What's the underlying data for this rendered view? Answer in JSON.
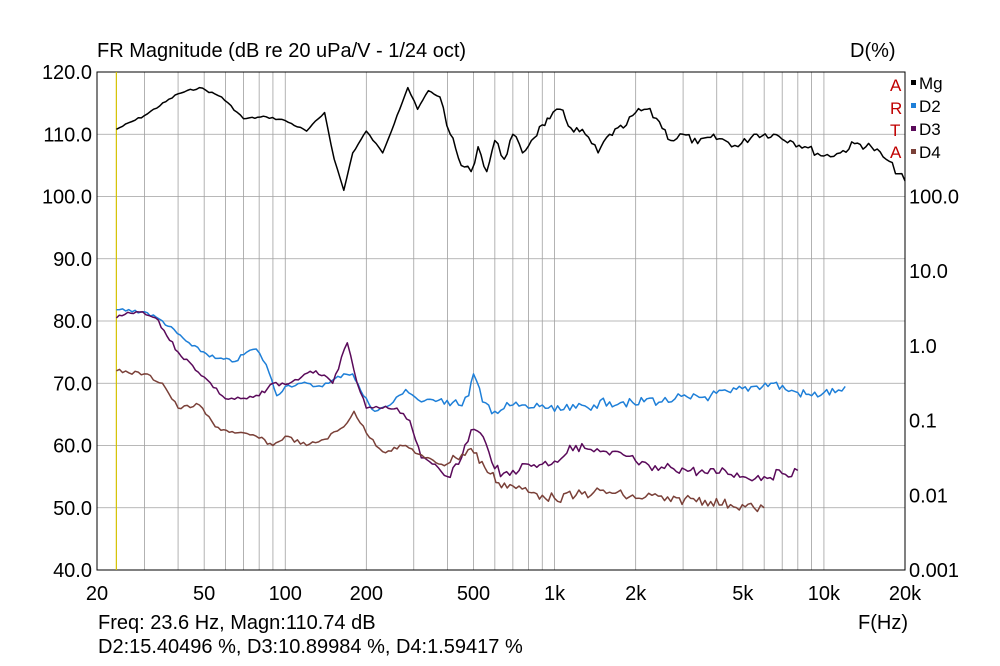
{
  "header": {
    "title": "FR Magnitude (dB re 20 uPa/V - 1/24 oct)",
    "right_axis_unit": "D(%)",
    "x_unit": "F(Hz)"
  },
  "readout": {
    "line1": "Freq: 23.6 Hz, Magn:110.74 dB",
    "line2": "D2:15.40496 %, D3:10.89984 %, D4:1.59417 %"
  },
  "brand": [
    "A",
    "R",
    "T",
    "A"
  ],
  "colors": {
    "Mg": "#000000",
    "D2": "#1e7fd8",
    "D3": "#5a0a5a",
    "D4": "#7a4038",
    "cursor": "#d4c200",
    "grid": "#a0a0a0",
    "brand": "#c00000"
  },
  "chart_data": {
    "type": "line",
    "title": "FR Magnitude (dB re 20 uPa/V - 1/24 oct)",
    "x_scale": "log",
    "xlim": [
      20,
      20000
    ],
    "x_ticks": [
      20,
      50,
      100,
      200,
      500,
      1000,
      2000,
      5000,
      10000,
      20000
    ],
    "x_tick_labels": [
      "20",
      "50",
      "100",
      "200",
      "500",
      "1k",
      "2k",
      "5k",
      "10k",
      "20k"
    ],
    "xlabel": "F(Hz)",
    "ylim": [
      40,
      120
    ],
    "y_ticks": [
      40,
      50,
      60,
      70,
      80,
      90,
      100,
      110,
      120
    ],
    "y_tick_labels": [
      "40.0",
      "50.0",
      "60.0",
      "70.0",
      "80.0",
      "90.0",
      "100.0",
      "110.0",
      "120.0"
    ],
    "y2_scale": "log",
    "y2lim": [
      0.001,
      100
    ],
    "y2label": "D(%)",
    "y2_ticks": [
      0.001,
      0.01,
      0.1,
      1,
      10,
      100
    ],
    "y2_tick_labels": [
      "0.001",
      "0.01",
      "0.1",
      "1.0",
      "10.0",
      "100.0"
    ],
    "grid": true,
    "legend_position": "top-right",
    "cursor_x": 23.6,
    "series": [
      {
        "name": "Mg",
        "color": "#000000",
        "points": [
          [
            23.6,
            110.8
          ],
          [
            30,
            113
          ],
          [
            40,
            116.5
          ],
          [
            48,
            117.5
          ],
          [
            58,
            116
          ],
          [
            70,
            112.5
          ],
          [
            85,
            112.8
          ],
          [
            100,
            112.2
          ],
          [
            120,
            110.5
          ],
          [
            140,
            113.5
          ],
          [
            152,
            106
          ],
          [
            165,
            101
          ],
          [
            178,
            107
          ],
          [
            200,
            110.5
          ],
          [
            230,
            107
          ],
          [
            260,
            113
          ],
          [
            285,
            117.5
          ],
          [
            310,
            114
          ],
          [
            340,
            117
          ],
          [
            375,
            116
          ],
          [
            410,
            110
          ],
          [
            450,
            105
          ],
          [
            490,
            104
          ],
          [
            520,
            108
          ],
          [
            560,
            104
          ],
          [
            600,
            109
          ],
          [
            650,
            106
          ],
          [
            700,
            110
          ],
          [
            760,
            107
          ],
          [
            820,
            109
          ],
          [
            900,
            111.5
          ],
          [
            960,
            112.5
          ],
          [
            1050,
            114
          ],
          [
            1150,
            111
          ],
          [
            1300,
            110
          ],
          [
            1450,
            107
          ],
          [
            1600,
            110
          ],
          [
            1800,
            111
          ],
          [
            2000,
            113.5
          ],
          [
            2200,
            114
          ],
          [
            2450,
            112
          ],
          [
            2700,
            109
          ],
          [
            3000,
            110
          ],
          [
            3400,
            108.5
          ],
          [
            3800,
            109.5
          ],
          [
            4300,
            109
          ],
          [
            4800,
            108
          ],
          [
            5500,
            110
          ],
          [
            6500,
            110
          ],
          [
            7500,
            109
          ],
          [
            8500,
            108
          ],
          [
            10000,
            106.5
          ],
          [
            11500,
            107
          ],
          [
            13000,
            108.5
          ],
          [
            15000,
            108
          ],
          [
            17000,
            106
          ],
          [
            20000,
            102.5
          ]
        ]
      },
      {
        "name": "D2",
        "color": "#1e7fd8",
        "points": [
          [
            23.6,
            81.8
          ],
          [
            30,
            81.5
          ],
          [
            35,
            80
          ],
          [
            45,
            76
          ],
          [
            55,
            74
          ],
          [
            65,
            73.5
          ],
          [
            72,
            75
          ],
          [
            78,
            75.5
          ],
          [
            85,
            73
          ],
          [
            93,
            68
          ],
          [
            100,
            69.5
          ],
          [
            115,
            70
          ],
          [
            130,
            69.5
          ],
          [
            145,
            70
          ],
          [
            165,
            71.5
          ],
          [
            178,
            71.5
          ],
          [
            195,
            68
          ],
          [
            215,
            65.5
          ],
          [
            245,
            66.5
          ],
          [
            280,
            69
          ],
          [
            320,
            67
          ],
          [
            380,
            67.5
          ],
          [
            440,
            66.5
          ],
          [
            480,
            68
          ],
          [
            500,
            71.5
          ],
          [
            540,
            67
          ],
          [
            600,
            65.5
          ],
          [
            700,
            66.5
          ],
          [
            800,
            66
          ],
          [
            900,
            66.5
          ],
          [
            1000,
            65.5
          ],
          [
            1200,
            66
          ],
          [
            1400,
            66.5
          ],
          [
            1600,
            67
          ],
          [
            1800,
            67
          ],
          [
            2000,
            66.5
          ],
          [
            2200,
            67.5
          ],
          [
            2500,
            67
          ],
          [
            2800,
            67.5
          ],
          [
            3200,
            67.5
          ],
          [
            3800,
            68
          ],
          [
            4500,
            68.5
          ],
          [
            5500,
            69.5
          ],
          [
            6500,
            70
          ],
          [
            7200,
            69
          ],
          [
            8000,
            68.5
          ],
          [
            9000,
            68
          ],
          [
            10000,
            68.5
          ],
          [
            11000,
            68.5
          ],
          [
            12000,
            69.5
          ]
        ]
      },
      {
        "name": "D3",
        "color": "#5a0a5a",
        "points": [
          [
            23.6,
            80.5
          ],
          [
            28,
            81.5
          ],
          [
            33,
            80.5
          ],
          [
            40,
            75
          ],
          [
            50,
            71
          ],
          [
            60,
            67.5
          ],
          [
            72,
            67.5
          ],
          [
            80,
            68
          ],
          [
            90,
            70
          ],
          [
            100,
            69.8
          ],
          [
            115,
            71
          ],
          [
            130,
            72
          ],
          [
            150,
            70
          ],
          [
            170,
            76.5
          ],
          [
            185,
            70
          ],
          [
            200,
            66
          ],
          [
            230,
            66
          ],
          [
            260,
            66
          ],
          [
            290,
            64
          ],
          [
            320,
            58
          ],
          [
            360,
            57
          ],
          [
            400,
            55
          ],
          [
            440,
            57
          ],
          [
            490,
            62.5
          ],
          [
            530,
            62
          ],
          [
            570,
            59
          ],
          [
            630,
            55
          ],
          [
            700,
            56
          ],
          [
            800,
            57
          ],
          [
            900,
            57
          ],
          [
            1000,
            57.5
          ],
          [
            1200,
            60
          ],
          [
            1400,
            59
          ],
          [
            1600,
            58.5
          ],
          [
            1800,
            58.5
          ],
          [
            2000,
            57.5
          ],
          [
            2300,
            56
          ],
          [
            2700,
            56.5
          ],
          [
            3200,
            56
          ],
          [
            3700,
            55.5
          ],
          [
            4300,
            56
          ],
          [
            5000,
            55
          ],
          [
            6000,
            55
          ],
          [
            7000,
            55.5
          ],
          [
            8000,
            56
          ]
        ]
      },
      {
        "name": "D4",
        "color": "#7a4038",
        "points": [
          [
            23.6,
            72
          ],
          [
            30,
            71.5
          ],
          [
            35,
            70
          ],
          [
            40,
            66
          ],
          [
            48,
            66.5
          ],
          [
            55,
            63
          ],
          [
            65,
            62
          ],
          [
            78,
            61.5
          ],
          [
            90,
            60
          ],
          [
            100,
            61.5
          ],
          [
            120,
            60
          ],
          [
            140,
            61
          ],
          [
            165,
            63
          ],
          [
            180,
            65.5
          ],
          [
            200,
            62
          ],
          [
            230,
            59
          ],
          [
            280,
            60
          ],
          [
            330,
            58
          ],
          [
            380,
            57
          ],
          [
            430,
            58
          ],
          [
            490,
            59.5
          ],
          [
            550,
            56.5
          ],
          [
            620,
            54
          ],
          [
            700,
            53.5
          ],
          [
            800,
            52.5
          ],
          [
            900,
            52
          ],
          [
            1000,
            51.5
          ],
          [
            1200,
            52
          ],
          [
            1400,
            52.5
          ],
          [
            1600,
            52.5
          ],
          [
            1800,
            52
          ],
          [
            2000,
            51.5
          ],
          [
            2300,
            52
          ],
          [
            2700,
            51
          ],
          [
            3200,
            51.5
          ],
          [
            3800,
            51
          ],
          [
            4500,
            50.5
          ],
          [
            5500,
            50
          ],
          [
            6000,
            50
          ]
        ]
      }
    ]
  }
}
